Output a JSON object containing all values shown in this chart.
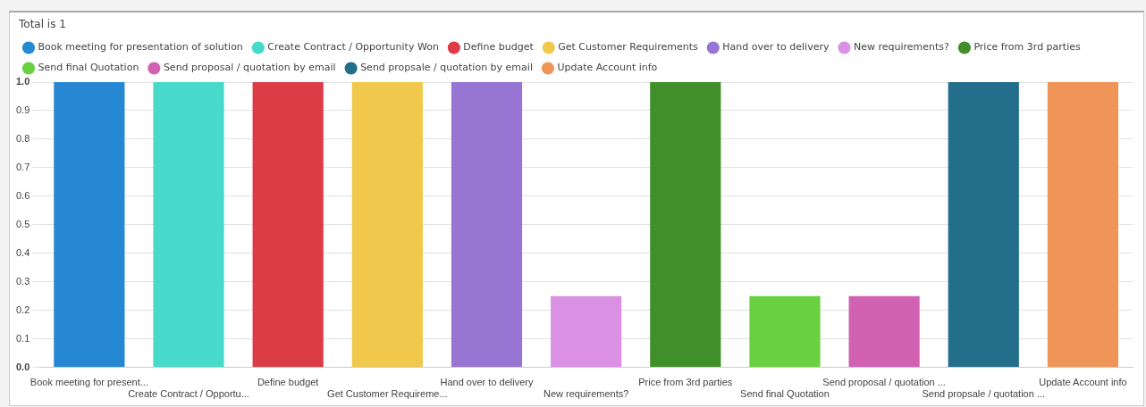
{
  "chart_data": {
    "type": "bar",
    "title": "Total is 1",
    "categories": [
      "Book meeting for present...",
      "Create Contract / Opportu...",
      "Define budget",
      "Get Customer Requireme...",
      "Hand over to delivery",
      "New requirements?",
      "Price from 3rd parties",
      "Send final Quotation",
      "Send proposal / quotation ...",
      "Send propsale / quotation ...",
      "Update Account info"
    ],
    "series": [
      {
        "name": "Book meeting for presentation of solution",
        "color": "#2688d3",
        "values": [
          1,
          null,
          null,
          null,
          null,
          null,
          null,
          null,
          null,
          null,
          null
        ]
      },
      {
        "name": "Create Contract / Opportunity Won",
        "color": "#47d9c9",
        "values": [
          null,
          1,
          null,
          null,
          null,
          null,
          null,
          null,
          null,
          null,
          null
        ]
      },
      {
        "name": "Define budget",
        "color": "#db3c45",
        "values": [
          null,
          null,
          1,
          null,
          null,
          null,
          null,
          null,
          null,
          null,
          null
        ]
      },
      {
        "name": "Get Customer Requirements",
        "color": "#f0c84b",
        "values": [
          null,
          null,
          null,
          1,
          null,
          null,
          null,
          null,
          null,
          null,
          null
        ]
      },
      {
        "name": "Hand over to delivery",
        "color": "#9675d3",
        "values": [
          null,
          null,
          null,
          null,
          1,
          null,
          null,
          null,
          null,
          null,
          null
        ]
      },
      {
        "name": "New requirements?",
        "color": "#da90e3",
        "values": [
          null,
          null,
          null,
          null,
          null,
          0.25,
          null,
          null,
          null,
          null,
          null
        ]
      },
      {
        "name": "Price from 3rd parties",
        "color": "#418f2b",
        "values": [
          null,
          null,
          null,
          null,
          null,
          null,
          1,
          null,
          null,
          null,
          null
        ]
      },
      {
        "name": "Send final Quotation",
        "color": "#68d041",
        "values": [
          null,
          null,
          null,
          null,
          null,
          null,
          null,
          0.25,
          null,
          null,
          null
        ]
      },
      {
        "name": "Send proposal / quotation by email",
        "color": "#d162b2",
        "values": [
          null,
          null,
          null,
          null,
          null,
          null,
          null,
          null,
          0.25,
          null,
          null
        ]
      },
      {
        "name": "Send propsale / quotation by email",
        "color": "#226e8b",
        "values": [
          null,
          null,
          null,
          null,
          null,
          null,
          null,
          null,
          null,
          1,
          null
        ]
      },
      {
        "name": "Update Account info",
        "color": "#ef9558",
        "values": [
          null,
          null,
          null,
          null,
          null,
          null,
          null,
          null,
          null,
          null,
          1
        ]
      }
    ],
    "ylim": [
      0,
      1
    ],
    "yticks": [
      {
        "value": 0,
        "label": "0.0"
      },
      0.1,
      0.2,
      0.3,
      0.4,
      0.5,
      0.6,
      0.7,
      0.8,
      0.9,
      {
        "value": 1,
        "label": "1.0"
      }
    ],
    "grid": "y",
    "legend": "top"
  }
}
